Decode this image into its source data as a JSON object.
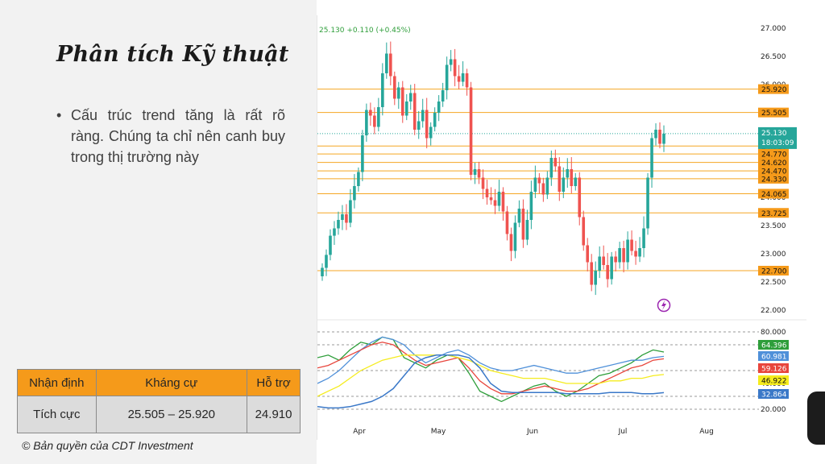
{
  "slide": {
    "title": "Phân tích Kỹ thuật",
    "bullet": "Cấu trúc trend tăng là rất rõ ràng. Chúng ta chỉ nên canh buy trong thị trường này",
    "copyright": "© Bản quyền của CDT Investment"
  },
  "table": {
    "headers": [
      "Nhận định",
      "Kháng cự",
      "Hỗ trợ"
    ],
    "rows": [
      [
        "Tích cực",
        "25.505 – 25.920",
        "24.910"
      ]
    ]
  },
  "chart_data": {
    "type": "candlestick",
    "ticker_readout": "25.130 +0.110 (+0.45%)",
    "countdown": "18:03:09",
    "x_tick_labels": [
      "Apr",
      "May",
      "Jun",
      "Jul",
      "Aug"
    ],
    "price_axis": {
      "ticks": [
        "22.000",
        "22.500",
        "23.000",
        "23.500",
        "24.000",
        "24.500",
        "25.000",
        "25.500",
        "26.000",
        "26.500",
        "27.000"
      ],
      "ylim": [
        22.0,
        27.0
      ]
    },
    "last_price": 25.13,
    "resistance_levels": [
      25.92,
      25.505
    ],
    "support_levels": [
      24.91,
      24.77,
      24.62,
      24.47,
      24.33,
      24.065,
      23.725,
      22.7
    ],
    "level_labels": [
      "25.920",
      "25.505",
      "24.910",
      "24.770",
      "24.620",
      "24.470",
      "24.330",
      "24.065",
      "23.725",
      "22.700"
    ],
    "candles_close": [
      22.75,
      22.98,
      23.32,
      23.45,
      23.6,
      23.7,
      23.55,
      23.95,
      24.2,
      24.45,
      25.1,
      25.55,
      25.45,
      25.25,
      25.6,
      26.2,
      26.55,
      26.15,
      25.75,
      25.95,
      25.45,
      25.7,
      25.85,
      25.2,
      25.35,
      25.55,
      25.05,
      25.25,
      25.5,
      25.7,
      25.9,
      26.35,
      26.45,
      26.15,
      26.05,
      26.2,
      25.95,
      24.4,
      24.5,
      24.35,
      24.15,
      24.0,
      23.95,
      23.85,
      24.1,
      23.75,
      23.35,
      23.05,
      23.55,
      23.8,
      23.25,
      23.6,
      24.1,
      24.35,
      24.25,
      24.05,
      24.35,
      24.7,
      24.55,
      24.1,
      24.35,
      24.5,
      24.2,
      24.35,
      23.65,
      23.15,
      22.85,
      22.45,
      22.7,
      22.95,
      22.8,
      22.55,
      22.95,
      22.85,
      23.1,
      22.85,
      23.25,
      23.05,
      22.95,
      23.1,
      23.45,
      24.35,
      25.05,
      25.2,
      24.95,
      25.13
    ],
    "indicator": {
      "axis_ticks": [
        "20.000",
        "40.000",
        "60.000",
        "80.000"
      ],
      "dashed_levels": [
        80,
        70,
        50,
        30,
        20
      ],
      "series": [
        {
          "color": "#2e9e3a",
          "last": 64.396
        },
        {
          "color": "#4f90d9",
          "last": 60.981
        },
        {
          "color": "#e8453c",
          "last": 59.126
        },
        {
          "color": "#f5ec1e",
          "last": 46.922
        },
        {
          "color": "#3a78c8",
          "last": 32.864
        }
      ],
      "labels": [
        "64.396",
        "60.981",
        "59.126",
        "46.922",
        "32.864"
      ]
    }
  }
}
